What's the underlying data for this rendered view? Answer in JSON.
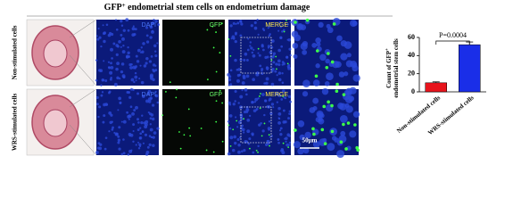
{
  "header": {
    "title_parts": [
      "GFP",
      "+",
      " endometrial stem cells on endometrium damage"
    ]
  },
  "panels": {
    "rows": [
      "Non-stimulated cells",
      "WRS-stimulated cells"
    ],
    "channels": [
      "DAPI",
      "GFP",
      "MERGE"
    ],
    "scale_bar": "50μm"
  },
  "chart_data": {
    "type": "bar",
    "ylabel_parts": [
      "Count of GFP",
      "+",
      "endometrial stem cells"
    ],
    "categories": [
      "Non-stimulated cells",
      "WRS-stimulated cells"
    ],
    "values": [
      10,
      52
    ],
    "errors": [
      1,
      3
    ],
    "colors": [
      "#e8141c",
      "#1a2ee8"
    ],
    "ylim": [
      0,
      60
    ],
    "yticks": [
      0,
      20,
      40,
      60
    ],
    "annotation": "P=0.0004"
  }
}
